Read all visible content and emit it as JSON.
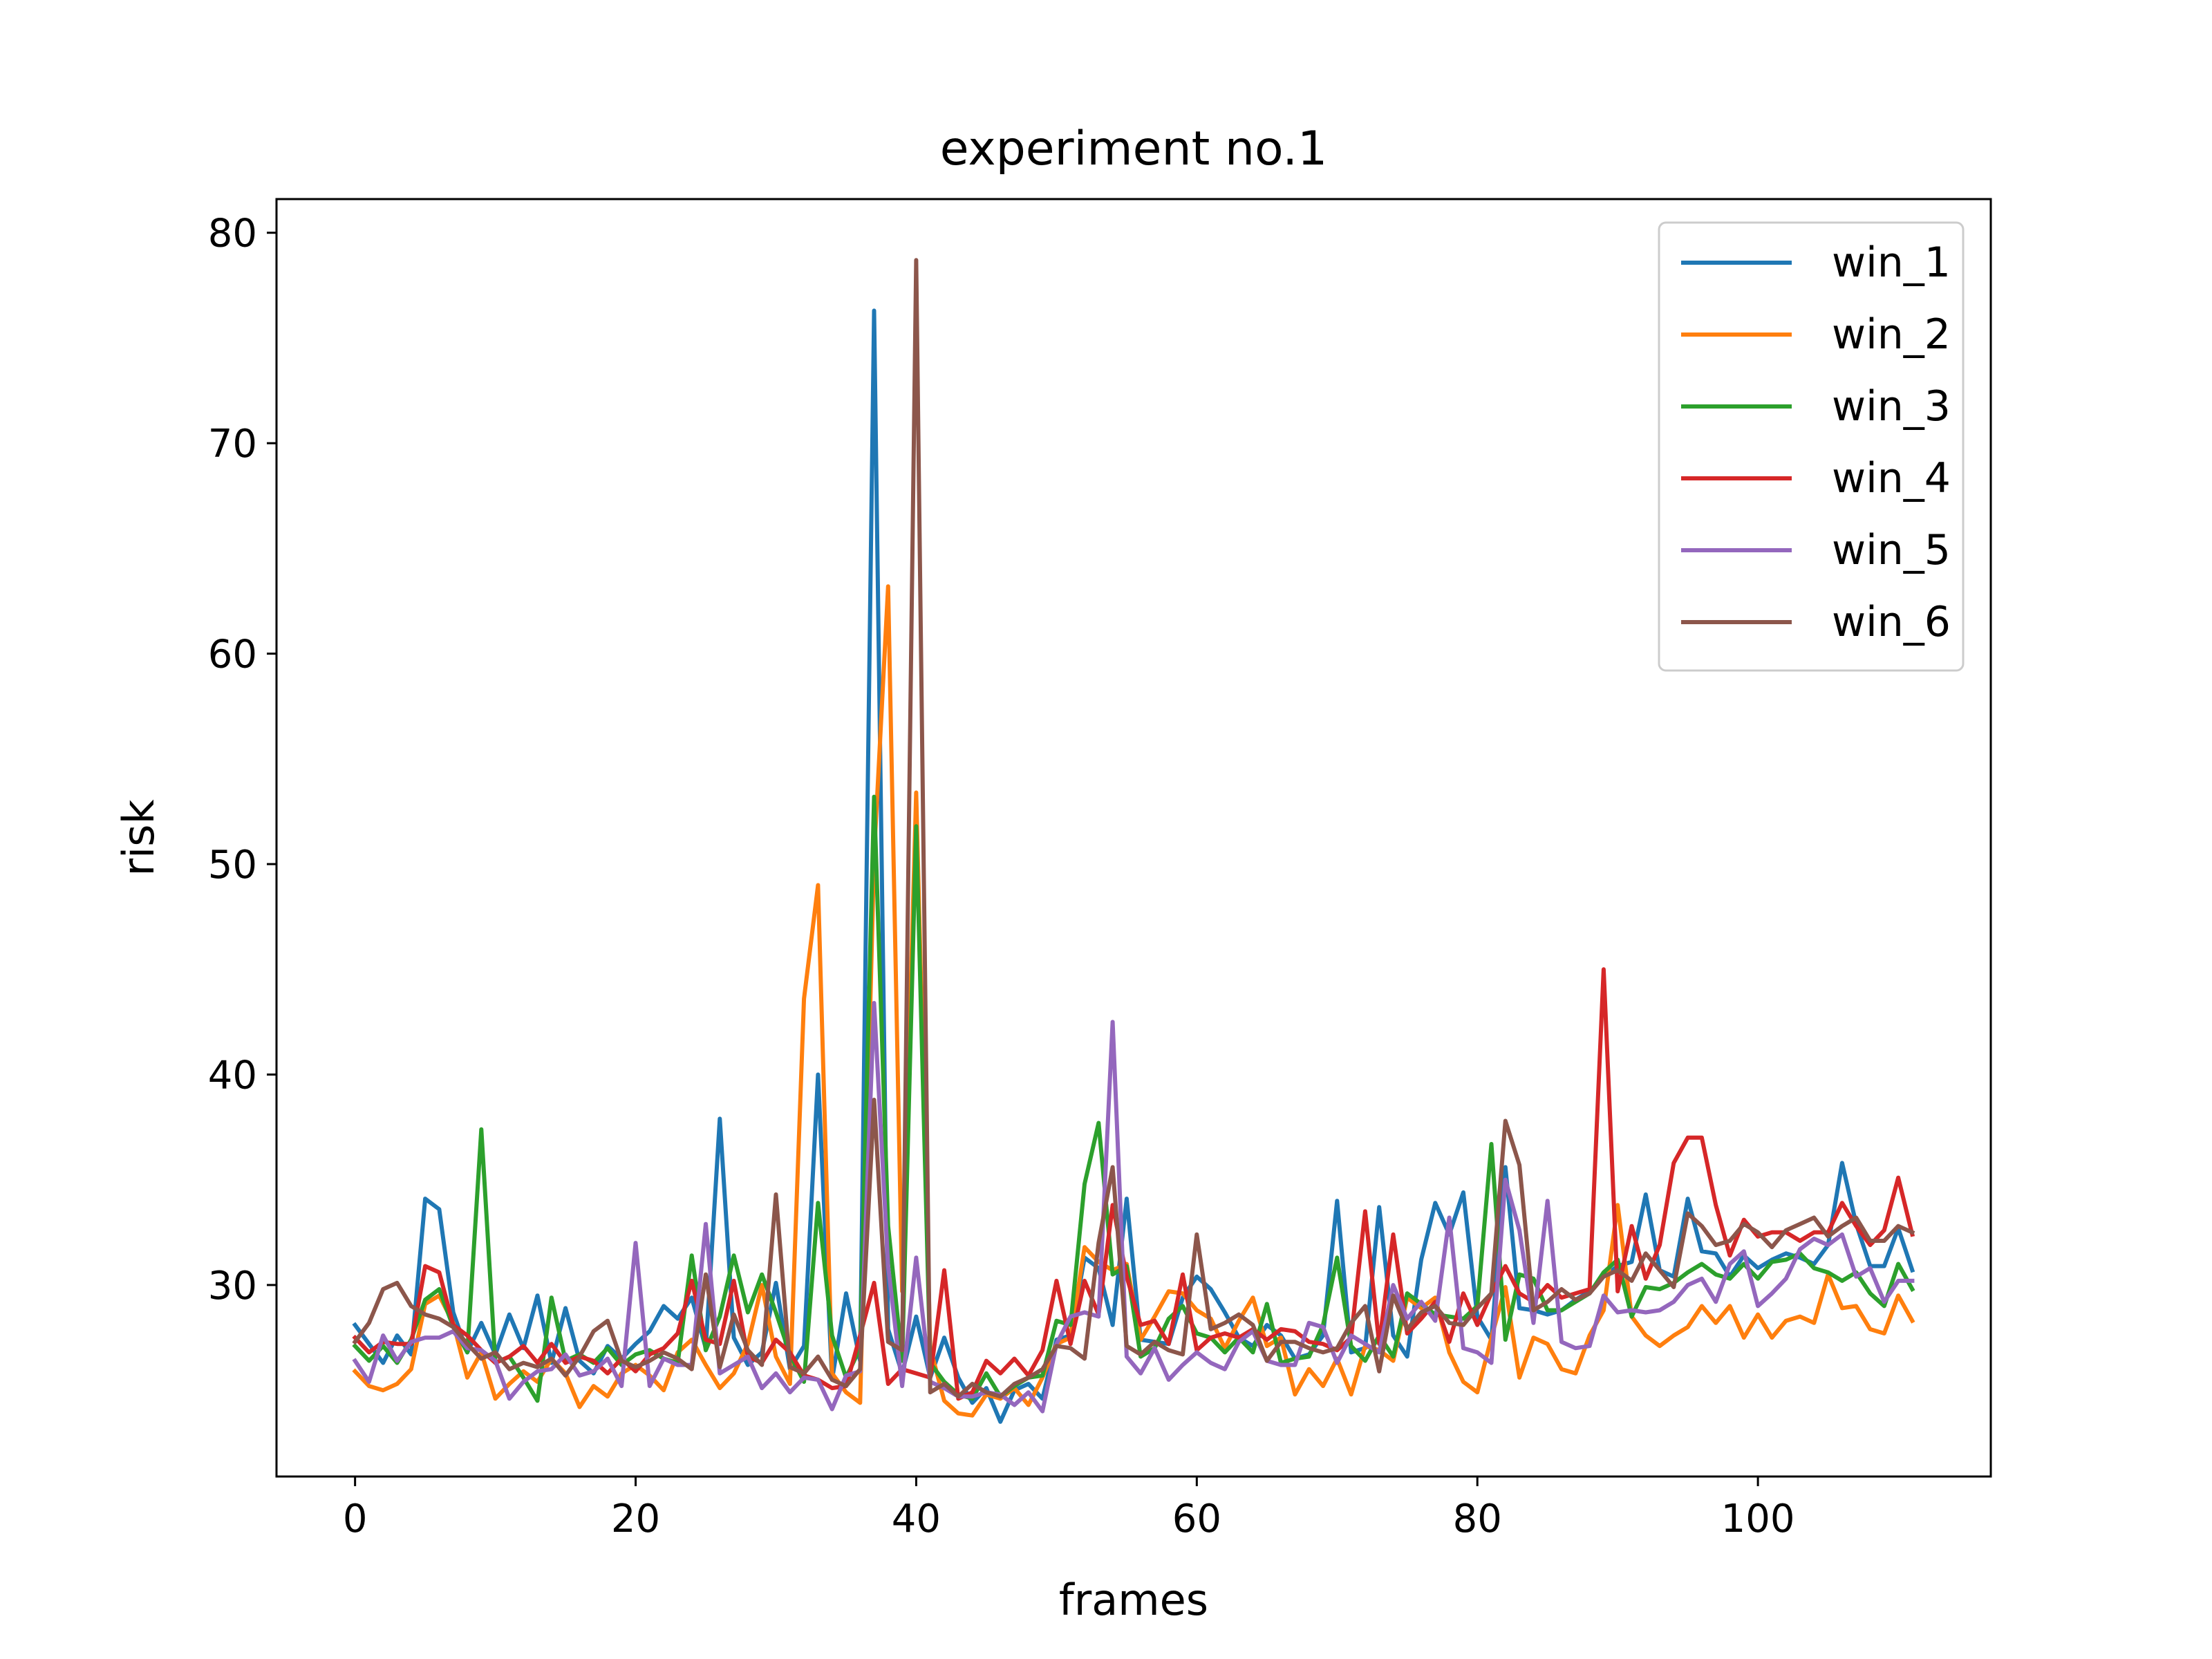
{
  "chart_data": {
    "type": "line",
    "title": "experiment no.1",
    "xlabel": "frames",
    "ylabel": "risk",
    "xlim": [
      -5.6,
      116.6
    ],
    "ylim": [
      20.9,
      81.6
    ],
    "xticks": [
      0,
      20,
      40,
      60,
      80,
      100
    ],
    "yticks": [
      30,
      40,
      50,
      60,
      70,
      80
    ],
    "grid": false,
    "legend_position": "top-right",
    "x": [
      0,
      1,
      2,
      3,
      4,
      5,
      6,
      7,
      8,
      9,
      10,
      11,
      12,
      13,
      14,
      15,
      16,
      17,
      18,
      19,
      20,
      21,
      22,
      23,
      24,
      25,
      26,
      27,
      28,
      29,
      30,
      31,
      32,
      33,
      34,
      35,
      36,
      37,
      38,
      39,
      40,
      41,
      42,
      43,
      44,
      45,
      46,
      47,
      48,
      49,
      50,
      51,
      52,
      53,
      54,
      55,
      56,
      57,
      58,
      59,
      60,
      61,
      62,
      63,
      64,
      65,
      66,
      67,
      68,
      69,
      70,
      71,
      72,
      73,
      74,
      75,
      76,
      77,
      78,
      79,
      80,
      81,
      82,
      83,
      84,
      85,
      86,
      87,
      88,
      89,
      90,
      91,
      92,
      93,
      94,
      95,
      96,
      97,
      98,
      99,
      100,
      101,
      102,
      103,
      104,
      105,
      106,
      107,
      108,
      109,
      110,
      111
    ],
    "series": [
      {
        "name": "win_1",
        "color": "#1f77b4",
        "values": [
          28.1,
          27.2,
          26.3,
          27.6,
          26.7,
          34.1,
          33.6,
          28.7,
          26.8,
          28.2,
          26.7,
          28.6,
          27.0,
          29.5,
          26.3,
          28.9,
          26.4,
          25.8,
          27.1,
          26.5,
          27.2,
          27.8,
          29.0,
          28.4,
          29.4,
          27.0,
          37.9,
          27.5,
          26.2,
          26.8,
          30.1,
          26.0,
          27.1,
          40.0,
          25.5,
          29.6,
          26.4,
          76.3,
          27.9,
          25.8,
          28.5,
          25.6,
          27.5,
          25.6,
          24.4,
          25.1,
          23.5,
          25.0,
          25.3,
          24.6,
          27.4,
          27.6,
          31.3,
          30.8,
          28.1,
          34.1,
          27.4,
          27.3,
          27.2,
          29.4,
          30.4,
          29.8,
          28.7,
          27.5,
          27.1,
          28.1,
          27.6,
          26.5,
          26.7,
          27.6,
          34.0,
          26.8,
          27.0,
          33.7,
          27.6,
          26.6,
          31.2,
          33.9,
          32.4,
          34.4,
          28.5,
          27.4,
          35.6,
          28.9,
          28.8,
          28.6,
          28.8,
          29.3,
          29.7,
          30.4,
          30.9,
          31.1,
          34.3,
          30.7,
          30.4,
          34.1,
          31.6,
          31.5,
          30.4,
          31.4,
          30.8,
          31.2,
          31.5,
          31.3,
          31.0,
          31.9,
          35.8,
          32.9,
          30.9,
          30.9,
          32.7,
          30.7
        ]
      },
      {
        "name": "win_2",
        "color": "#ff7f0e",
        "values": [
          25.9,
          25.2,
          25.0,
          25.3,
          26.0,
          29.1,
          29.5,
          28.2,
          25.6,
          26.8,
          24.6,
          25.3,
          25.9,
          25.4,
          26.5,
          25.8,
          24.2,
          25.2,
          24.7,
          25.8,
          26.2,
          25.7,
          25.0,
          26.8,
          27.4,
          26.2,
          25.1,
          25.8,
          27.2,
          30.0,
          26.6,
          25.3,
          43.6,
          49.0,
          25.8,
          24.9,
          24.4,
          50.4,
          63.2,
          29.7,
          53.4,
          27.0,
          24.5,
          23.9,
          23.8,
          24.8,
          24.6,
          25.1,
          24.3,
          25.6,
          27.2,
          27.5,
          31.8,
          31.1,
          30.7,
          31.0,
          27.4,
          28.5,
          29.7,
          29.6,
          28.8,
          28.4,
          27.0,
          28.3,
          29.4,
          27.1,
          27.5,
          24.8,
          26.0,
          25.2,
          26.5,
          24.8,
          27.1,
          26.9,
          26.4,
          29.4,
          28.9,
          29.4,
          26.8,
          25.4,
          24.9,
          27.5,
          29.9,
          25.6,
          27.5,
          27.2,
          26.0,
          25.8,
          27.6,
          28.8,
          33.8,
          28.5,
          27.6,
          27.1,
          27.6,
          28.0,
          29.0,
          28.2,
          29.0,
          27.5,
          28.6,
          27.5,
          28.3,
          28.5,
          28.2,
          30.5,
          28.9,
          29.0,
          27.9,
          27.7,
          29.5,
          28.3
        ]
      },
      {
        "name": "win_3",
        "color": "#2ca02c",
        "values": [
          27.1,
          26.4,
          27.1,
          26.3,
          27.4,
          29.3,
          29.8,
          28.0,
          26.8,
          37.4,
          26.3,
          26.6,
          25.6,
          24.5,
          29.4,
          26.4,
          26.7,
          26.3,
          27.0,
          26.2,
          26.7,
          26.9,
          26.5,
          26.3,
          31.4,
          26.9,
          28.5,
          31.4,
          28.7,
          30.5,
          28.7,
          26.7,
          25.4,
          33.9,
          27.6,
          25.6,
          27.0,
          53.2,
          32.8,
          26.4,
          51.8,
          26.3,
          25.4,
          24.8,
          24.6,
          25.8,
          24.7,
          25.2,
          25.6,
          25.7,
          28.3,
          28.1,
          34.8,
          37.7,
          30.5,
          30.9,
          26.6,
          27.0,
          28.4,
          29.0,
          27.7,
          27.5,
          26.8,
          27.5,
          26.8,
          29.1,
          26.3,
          26.5,
          26.6,
          28.1,
          31.3,
          27.1,
          26.4,
          27.6,
          26.6,
          29.6,
          29.1,
          28.6,
          28.5,
          28.4,
          29.0,
          36.7,
          27.4,
          30.5,
          30.3,
          28.8,
          28.8,
          29.2,
          29.6,
          30.6,
          31.2,
          28.5,
          29.9,
          29.8,
          30.1,
          30.6,
          31.0,
          30.5,
          30.3,
          31.0,
          30.3,
          31.1,
          31.2,
          31.5,
          30.8,
          30.6,
          30.2,
          30.6,
          29.6,
          29.0,
          31.0,
          29.8
        ]
      },
      {
        "name": "win_4",
        "color": "#d62728",
        "values": [
          27.5,
          26.8,
          27.3,
          27.2,
          27.2,
          30.9,
          30.6,
          28.1,
          27.6,
          26.9,
          26.3,
          26.6,
          27.1,
          26.3,
          27.2,
          26.3,
          26.6,
          26.4,
          25.8,
          26.5,
          25.9,
          26.7,
          27.0,
          27.7,
          30.2,
          27.4,
          27.2,
          30.2,
          26.6,
          26.3,
          27.4,
          26.8,
          25.7,
          25.5,
          25.1,
          25.2,
          27.6,
          30.1,
          25.3,
          26.0,
          25.8,
          25.6,
          30.7,
          24.6,
          24.9,
          26.4,
          25.8,
          26.5,
          25.7,
          26.9,
          30.2,
          27.2,
          30.2,
          28.6,
          33.8,
          30.4,
          28.1,
          28.3,
          27.2,
          30.5,
          26.9,
          27.5,
          27.7,
          27.5,
          27.9,
          27.4,
          27.9,
          27.8,
          27.3,
          27.2,
          26.9,
          27.5,
          33.5,
          27.2,
          32.4,
          27.7,
          28.4,
          29.2,
          27.3,
          29.6,
          28.1,
          29.6,
          30.9,
          29.6,
          29.2,
          30.0,
          29.4,
          29.6,
          29.8,
          45.0,
          29.7,
          32.8,
          30.3,
          31.9,
          35.8,
          37.0,
          37.0,
          33.8,
          31.4,
          33.1,
          32.3,
          32.5,
          32.5,
          32.1,
          32.5,
          32.5,
          33.9,
          32.8,
          31.9,
          32.6,
          35.1,
          32.4
        ]
      },
      {
        "name": "win_5",
        "color": "#9467bd",
        "values": [
          26.4,
          25.4,
          27.6,
          26.4,
          27.3,
          27.5,
          27.5,
          27.8,
          27.0,
          26.9,
          26.4,
          24.6,
          25.4,
          25.9,
          26.0,
          26.7,
          25.7,
          25.9,
          26.5,
          25.2,
          32.0,
          25.2,
          26.5,
          26.2,
          26.2,
          32.9,
          25.8,
          26.2,
          26.6,
          25.1,
          25.8,
          24.9,
          25.6,
          25.5,
          24.1,
          25.7,
          25.9,
          43.4,
          30.9,
          25.2,
          31.3,
          25.4,
          25.1,
          24.7,
          24.7,
          24.9,
          24.8,
          24.3,
          24.9,
          24.0,
          27.2,
          28.5,
          28.7,
          28.5,
          42.5,
          26.6,
          25.8,
          27.0,
          25.5,
          26.2,
          26.8,
          26.3,
          26.0,
          27.3,
          27.8,
          26.4,
          26.2,
          26.2,
          28.2,
          28.0,
          26.3,
          27.6,
          27.2,
          26.8,
          30.0,
          28.4,
          29.2,
          28.3,
          33.2,
          27.0,
          26.8,
          26.3,
          35.0,
          32.6,
          28.2,
          34.0,
          27.3,
          27.0,
          27.1,
          29.5,
          28.7,
          28.8,
          28.7,
          28.8,
          29.2,
          30.0,
          30.3,
          29.2,
          31.0,
          31.6,
          29.0,
          29.6,
          30.3,
          31.7,
          32.2,
          31.9,
          32.4,
          30.4,
          30.8,
          29.2,
          30.2,
          30.2
        ]
      },
      {
        "name": "win_6",
        "color": "#8c564b",
        "values": [
          27.3,
          28.2,
          29.8,
          30.1,
          29.0,
          28.6,
          28.4,
          28.0,
          27.2,
          26.5,
          26.8,
          26.0,
          26.3,
          26.1,
          26.5,
          25.7,
          26.6,
          27.8,
          28.3,
          26.4,
          26.1,
          26.4,
          26.8,
          26.5,
          26.0,
          30.5,
          26.1,
          28.6,
          26.9,
          26.2,
          34.3,
          26.1,
          25.8,
          26.6,
          25.5,
          25.2,
          26.0,
          38.8,
          27.3,
          26.9,
          78.7,
          24.9,
          25.3,
          24.7,
          25.3,
          24.9,
          24.7,
          25.3,
          25.6,
          26.0,
          27.1,
          27.0,
          26.5,
          32.0,
          35.6,
          27.1,
          26.7,
          27.3,
          26.9,
          26.7,
          32.4,
          27.9,
          28.2,
          28.6,
          28.1,
          26.4,
          27.3,
          27.3,
          27.0,
          26.8,
          27.0,
          28.2,
          29.0,
          25.9,
          29.5,
          27.9,
          28.7,
          29.0,
          28.2,
          28.1,
          28.9,
          29.6,
          37.8,
          35.7,
          28.8,
          29.2,
          29.8,
          29.3,
          29.6,
          30.4,
          30.7,
          30.2,
          31.5,
          30.7,
          29.9,
          33.4,
          32.8,
          31.9,
          32.1,
          32.9,
          32.5,
          31.8,
          32.6,
          32.9,
          33.2,
          32.3,
          32.8,
          33.2,
          32.1,
          32.1,
          32.8,
          32.5
        ]
      }
    ]
  }
}
